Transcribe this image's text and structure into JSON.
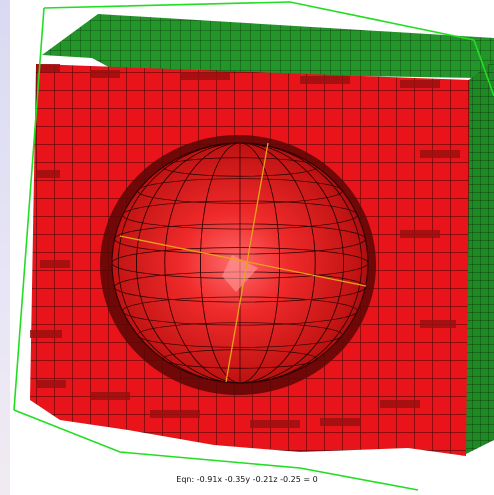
{
  "viewer": {
    "equation_label": "Eqn:  -0.91x  -0.35y  -0.21z  -0.25 = 0"
  },
  "colors": {
    "background": "#ffffff",
    "cube_face": "#e80f0f",
    "cube_face_light": "#ef2424",
    "cube_side": "#9a0f0f",
    "cube_top": "#b31515",
    "green_face": "#1e8a1e",
    "green_top": "#2fb02f",
    "bounding_box": "#22dd22",
    "sphere_axis": "#e6a21a",
    "mesh_line": "#1a0000"
  }
}
